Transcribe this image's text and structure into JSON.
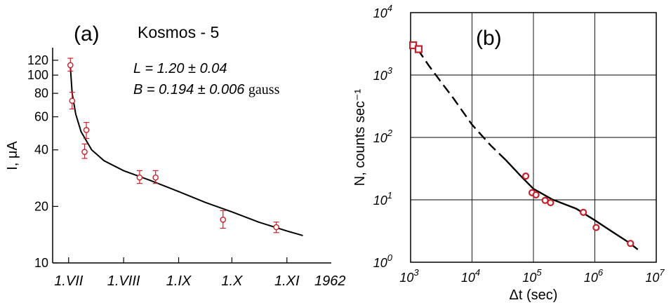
{
  "chart_data": [
    {
      "panel_label": "(a)",
      "type": "scatter",
      "title": "Kosmos - 5",
      "annotations": {
        "L_prefix": "L",
        "L_value": "= 1.20 ± 0.04",
        "B_prefix": "B",
        "B_value": "= 0.194 ± 0.006",
        "B_unit": "gauss"
      },
      "ylabel": "I, μA",
      "y_scale": "log",
      "ylim": [
        10,
        140
      ],
      "y_ticks": [
        {
          "value": 10,
          "label": "10"
        },
        {
          "value": 20,
          "label": "20"
        },
        {
          "value": 40,
          "label": "40"
        },
        {
          "value": 60,
          "label": "60"
        },
        {
          "value": 80,
          "label": "80"
        },
        {
          "value": 100,
          "label": "100"
        },
        {
          "value": 120,
          "label": "120"
        }
      ],
      "xlim": [
        "1962-06-22",
        "1962-11-26"
      ],
      "x_ticks": [
        {
          "value": "1962-07-01",
          "label": "1.VII"
        },
        {
          "value": "1962-08-01",
          "label": "1.VIII"
        },
        {
          "value": "1962-09-01",
          "label": "1.IX"
        },
        {
          "value": "1962-10-01",
          "label": "1.X"
        },
        {
          "value": "1962-11-01",
          "label": "1.XI"
        }
      ],
      "x_year_label": "1962",
      "grid": false,
      "series": [
        {
          "marker": "open-circle",
          "color": "#c8202a",
          "points": [
            {
              "x": "1962-07-02",
              "y": 113,
              "err_low": 105,
              "err_high": 123
            },
            {
              "x": "1962-07-03",
              "y": 73,
              "err_low": 66,
              "err_high": 81
            },
            {
              "x": "1962-07-10",
              "y": 39,
              "err_low": 36,
              "err_high": 43
            },
            {
              "x": "1962-07-11",
              "y": 51,
              "err_low": 46,
              "err_high": 56
            },
            {
              "x": "1962-08-10",
              "y": 28.5,
              "err_low": 26.5,
              "err_high": 31
            },
            {
              "x": "1962-08-19",
              "y": 28.5,
              "err_low": 26.5,
              "err_high": 31
            },
            {
              "x": "1962-09-26",
              "y": 17,
              "err_low": 15.3,
              "err_high": 19
            },
            {
              "x": "1962-10-26",
              "y": 15.5,
              "err_low": 14.5,
              "err_high": 16.5
            }
          ]
        },
        {
          "type": "line",
          "style": "solid",
          "color": "#000000",
          "points": [
            {
              "x": "1962-07-02",
              "y": 110
            },
            {
              "x": "1962-07-03",
              "y": 80
            },
            {
              "x": "1962-07-05",
              "y": 62
            },
            {
              "x": "1962-07-08",
              "y": 50
            },
            {
              "x": "1962-07-14",
              "y": 40
            },
            {
              "x": "1962-07-21",
              "y": 35
            },
            {
              "x": "1962-08-01",
              "y": 31
            },
            {
              "x": "1962-08-16",
              "y": 27.5
            },
            {
              "x": "1962-09-01",
              "y": 24
            },
            {
              "x": "1962-09-16",
              "y": 21
            },
            {
              "x": "1962-10-01",
              "y": 18.7
            },
            {
              "x": "1962-10-16",
              "y": 16.5
            },
            {
              "x": "1962-11-01",
              "y": 14.8
            },
            {
              "x": "1962-11-10",
              "y": 14
            }
          ]
        }
      ]
    },
    {
      "panel_label": "(b)",
      "type": "scatter",
      "xlabel": "Δt (sec)",
      "ylabel": "N, counts sec⁻¹",
      "x_scale": "log",
      "y_scale": "log",
      "xlim": [
        1000,
        10000000
      ],
      "ylim": [
        1,
        10000
      ],
      "x_ticks": [
        {
          "value": 1000,
          "base": "10",
          "exp": "3"
        },
        {
          "value": 10000,
          "base": "10",
          "exp": "4"
        },
        {
          "value": 100000,
          "base": "10",
          "exp": "5"
        },
        {
          "value": 1000000,
          "base": "10",
          "exp": "6"
        },
        {
          "value": 10000000,
          "base": "10",
          "exp": "7"
        }
      ],
      "y_ticks": [
        {
          "value": 1,
          "base": "10",
          "exp": "0"
        },
        {
          "value": 10,
          "base": "10",
          "exp": "1"
        },
        {
          "value": 100,
          "base": "10",
          "exp": "2"
        },
        {
          "value": 1000,
          "base": "10",
          "exp": "3"
        },
        {
          "value": 10000,
          "base": "10",
          "exp": "4"
        }
      ],
      "grid": true,
      "series": [
        {
          "marker": "open-square",
          "color": "#c8202a",
          "points": [
            {
              "x": 1100,
              "y": 3000
            },
            {
              "x": 1350,
              "y": 2600
            }
          ]
        },
        {
          "marker": "open-circle",
          "color": "#c8202a",
          "points": [
            {
              "x": 75000,
              "y": 24
            },
            {
              "x": 95000,
              "y": 13
            },
            {
              "x": 110000,
              "y": 12
            },
            {
              "x": 155000,
              "y": 9.8
            },
            {
              "x": 190000,
              "y": 9
            },
            {
              "x": 650000,
              "y": 6.3
            },
            {
              "x": 1050000,
              "y": 3.6
            },
            {
              "x": 3800000,
              "y": 2
            }
          ]
        },
        {
          "type": "line",
          "style": "dashed",
          "color": "#000000",
          "points": [
            {
              "x": 1300,
              "y": 2600
            },
            {
              "x": 2000,
              "y": 1400
            },
            {
              "x": 3000,
              "y": 820
            },
            {
              "x": 5000,
              "y": 420
            },
            {
              "x": 10000,
              "y": 160
            },
            {
              "x": 20000,
              "y": 75
            },
            {
              "x": 35000,
              "y": 44
            }
          ]
        },
        {
          "type": "line",
          "style": "solid",
          "color": "#000000",
          "points": [
            {
              "x": 35000,
              "y": 44
            },
            {
              "x": 60000,
              "y": 25
            },
            {
              "x": 100000,
              "y": 15
            },
            {
              "x": 200000,
              "y": 10.2
            },
            {
              "x": 500000,
              "y": 7.2
            },
            {
              "x": 1000000,
              "y": 4.7
            },
            {
              "x": 2000000,
              "y": 3
            },
            {
              "x": 3500000,
              "y": 2.1
            },
            {
              "x": 5000000,
              "y": 1.6
            }
          ]
        }
      ]
    }
  ]
}
